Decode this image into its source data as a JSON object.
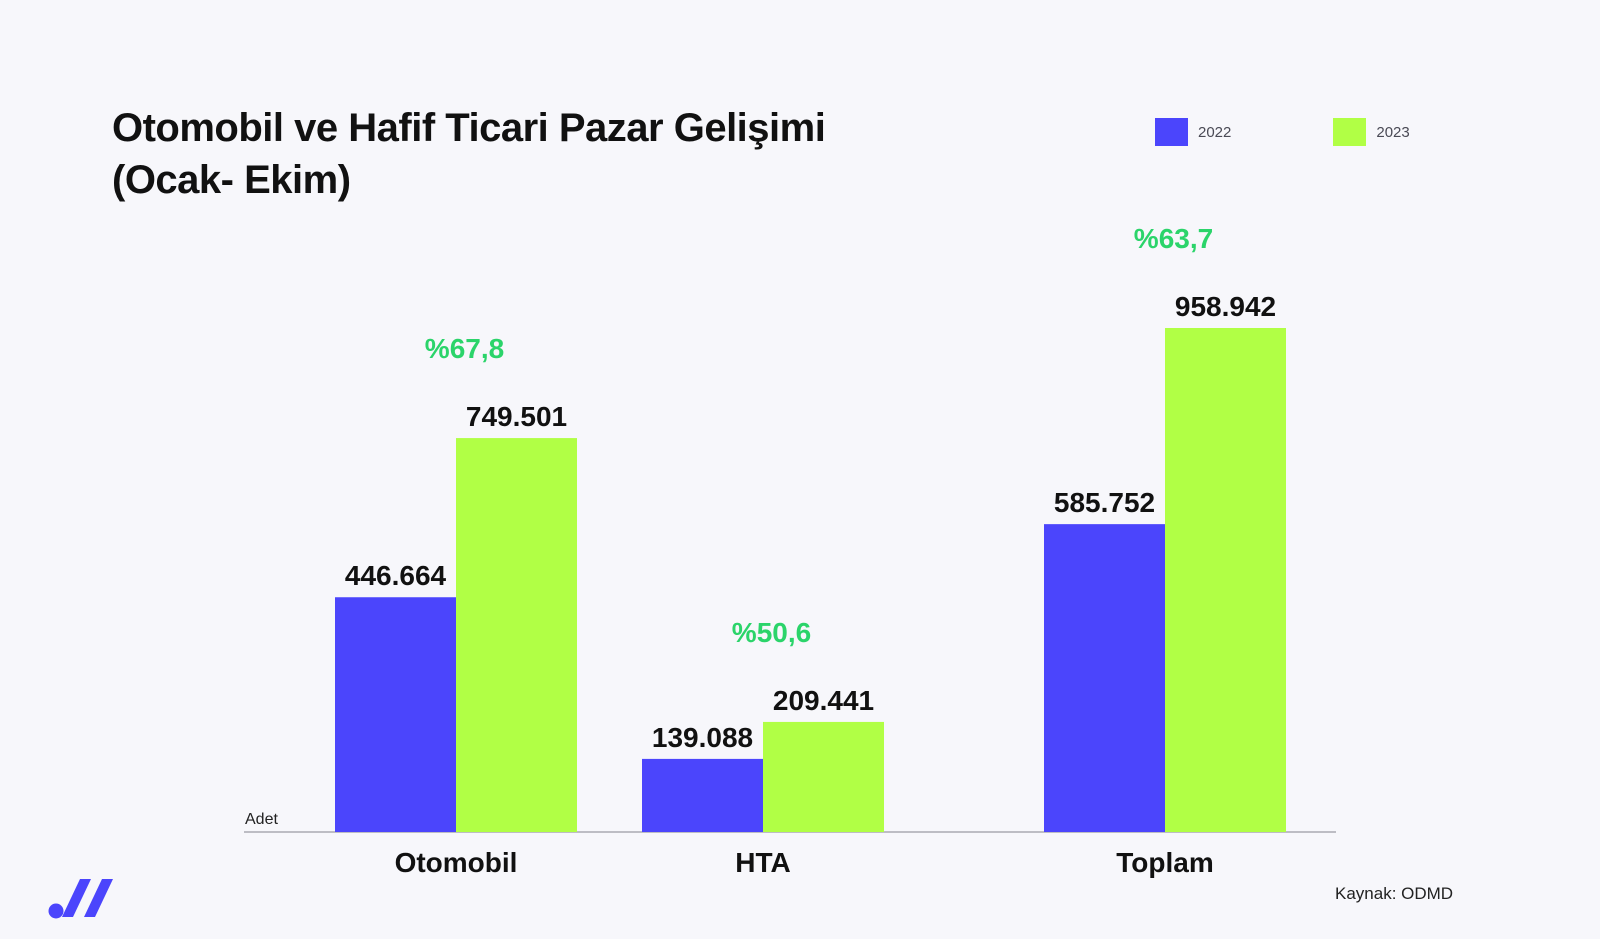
{
  "chart_data": {
    "type": "bar",
    "title": [
      "Otomobil ve Hafif Ticari Pazar Gelişimi",
      "(Ocak- Ekim)"
    ],
    "ylabel": "Adet",
    "categories": [
      "Otomobil",
      "HTA",
      "Toplam"
    ],
    "series": [
      {
        "name": "2022",
        "color": "#4b45fc",
        "values": [
          446664,
          139088,
          585752
        ],
        "value_labels": [
          "446.664",
          "139.088",
          "585.752"
        ]
      },
      {
        "name": "2023",
        "color": "#b1ff45",
        "values": [
          749501,
          209441,
          958942
        ],
        "value_labels": [
          "749.501",
          "209.441",
          "958.942"
        ]
      }
    ],
    "growth_labels": [
      "%67,8",
      "%50,6",
      "%63,7"
    ],
    "growth_color": "#2bd46a",
    "ylim": [
      0,
      958942
    ],
    "grid": false,
    "legend": "top-right"
  },
  "source": "Kaynak: ODMD",
  "logo_icon": "brand-logo-icon"
}
